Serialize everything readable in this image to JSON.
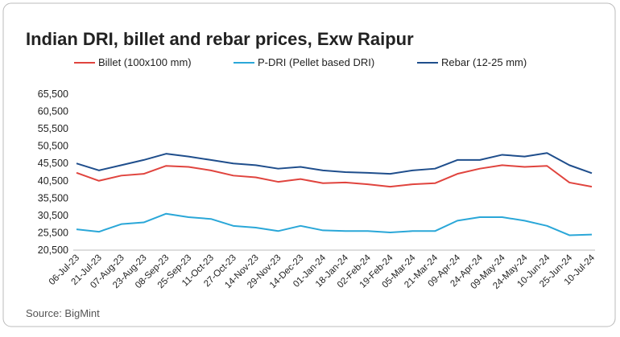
{
  "chart_data": {
    "type": "line",
    "title": "Indian DRI, billet and rebar prices, Exw Raipur",
    "source": "Source: BigMint",
    "categories": [
      "06-Jul-23",
      "21-Jul-23",
      "07-Aug-23",
      "23-Aug-23",
      "08-Sep-23",
      "25-Sep-23",
      "11-Oct-23",
      "27-Oct-23",
      "14-Nov-23",
      "29-Nov-23",
      "14-Dec-23",
      "01-Jan-24",
      "18-Jan-24",
      "02-Feb-24",
      "19-Feb-24",
      "05-Mar-24",
      "21-Mar-24",
      "09-Apr-24",
      "24-Apr-24",
      "09-May-24",
      "24-May-24",
      "10-Jun-24",
      "25-Jun-24",
      "10-Jul-24"
    ],
    "series": [
      {
        "name": "Billet (100x100 mm)",
        "color": "#e0443e",
        "values": [
          42800,
          40500,
          42000,
          42500,
          44800,
          44500,
          43500,
          42000,
          41500,
          40200,
          41000,
          39800,
          40000,
          39500,
          38800,
          39500,
          39800,
          42500,
          44000,
          45000,
          44500,
          44800,
          40000,
          38800
        ]
      },
      {
        "name": "P-DRI (Pellet based DRI)",
        "color": "#2aa7d8",
        "values": [
          26500,
          25800,
          28000,
          28500,
          31000,
          30000,
          29500,
          27500,
          27000,
          26000,
          27500,
          26200,
          26000,
          26000,
          25600,
          26000,
          26000,
          29000,
          30000,
          30000,
          29000,
          27500,
          24800,
          25000
        ]
      },
      {
        "name": "Rebar (12-25 mm)",
        "color": "#1f4e8c",
        "values": [
          45500,
          43500,
          45000,
          46500,
          48300,
          47500,
          46500,
          45500,
          45000,
          44000,
          44500,
          43500,
          43000,
          42800,
          42500,
          43500,
          44000,
          46500,
          46500,
          48000,
          47500,
          48500,
          45000,
          42700
        ]
      }
    ],
    "ylim": [
      20500,
      65500
    ],
    "yticks": [
      {
        "value": 20500,
        "label": "20,500"
      },
      {
        "value": 25500,
        "label": "25,500"
      },
      {
        "value": 30500,
        "label": "30,500"
      },
      {
        "value": 35500,
        "label": "35,500"
      },
      {
        "value": 40500,
        "label": "40,500"
      },
      {
        "value": 45500,
        "label": "45,500"
      },
      {
        "value": 50500,
        "label": "50,500"
      },
      {
        "value": 55500,
        "label": "55,500"
      },
      {
        "value": 60500,
        "label": "60,500"
      },
      {
        "value": 65500,
        "label": "65,500"
      }
    ],
    "legend": "top"
  }
}
